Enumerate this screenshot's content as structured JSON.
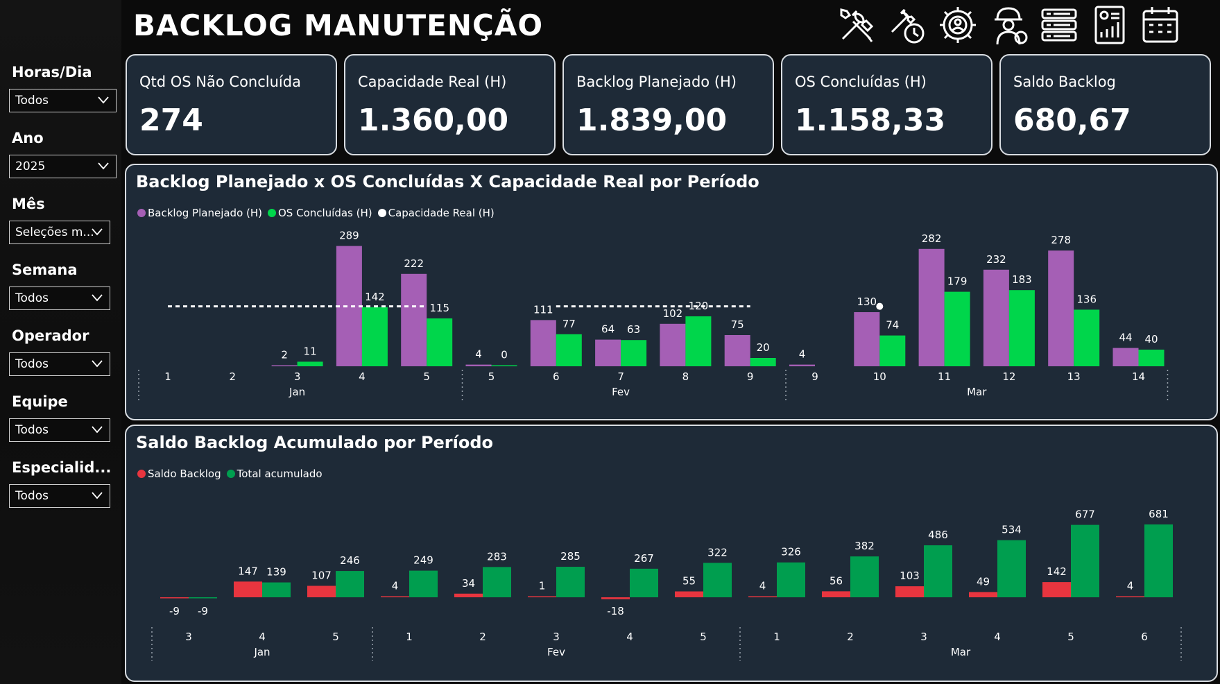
{
  "title": "BACKLOG MANUTENÇÃO",
  "header_icons": [
    "tools-icon",
    "wrench-timer-icon",
    "gear-person-money-icon",
    "engineer-gear-icon",
    "checklist-icon",
    "report-chart-icon",
    "calendar-icon"
  ],
  "filters": [
    {
      "label": "Horas/Dia",
      "value": "Todos"
    },
    {
      "label": "Ano",
      "value": "2025"
    },
    {
      "label": "Mês",
      "value": "Seleções m..."
    },
    {
      "label": "Semana",
      "value": "Todos"
    },
    {
      "label": "Operador",
      "value": "Todos"
    },
    {
      "label": "Equipe",
      "value": "Todos"
    },
    {
      "label": "Especialid...",
      "value": "Todos"
    }
  ],
  "kpis": [
    {
      "label": "Qtd OS Não Concluída",
      "value": "274"
    },
    {
      "label": "Capacidade Real (H)",
      "value": "1.360,00"
    },
    {
      "label": "Backlog Planejado (H)",
      "value": "1.839,00"
    },
    {
      "label": "OS Concluídas (H)",
      "value": "1.158,33"
    },
    {
      "label": "Saldo Backlog",
      "value": "680,67"
    }
  ],
  "colors": {
    "purple": "#a55fb5",
    "green": "#00d64b",
    "red": "#e8353f",
    "darkgreen": "#009e4f",
    "white": "#ffffff",
    "panel": "#1e2a37"
  },
  "chart_data": [
    {
      "type": "bar",
      "title": "Backlog Planejado x OS Concluídas X Capacidade Real por Período",
      "legend": [
        "Backlog Planejado (H)",
        "OS Concluídas (H)",
        "Capacidade Real (H)"
      ],
      "categories": [
        "1",
        "2",
        "3",
        "4",
        "5",
        "5",
        "6",
        "7",
        "8",
        "9",
        "9",
        "10",
        "11",
        "12",
        "13",
        "14"
      ],
      "groups": [
        {
          "label": "Jan",
          "from": 0,
          "to": 4
        },
        {
          "label": "Fev",
          "from": 5,
          "to": 9
        },
        {
          "label": "Mar",
          "from": 10,
          "to": 15
        }
      ],
      "series": [
        {
          "name": "Backlog Planejado (H)",
          "values": [
            null,
            null,
            2,
            289,
            222,
            4,
            111,
            64,
            102,
            75,
            4,
            130,
            282,
            232,
            278,
            44
          ]
        },
        {
          "name": "OS Concluídas (H)",
          "values": [
            null,
            null,
            11,
            142,
            115,
            0,
            77,
            63,
            120,
            20,
            null,
            74,
            179,
            183,
            136,
            40
          ]
        },
        {
          "name": "Capacidade Real (H)",
          "values": [
            144,
            144,
            144,
            144,
            144,
            null,
            144,
            144,
            144,
            144,
            null,
            144,
            null,
            null,
            null,
            null
          ]
        }
      ],
      "ylim": [
        0,
        300
      ]
    },
    {
      "type": "bar",
      "title": "Saldo Backlog Acumulado por Período",
      "legend": [
        "Saldo Backlog",
        "Total acumulado"
      ],
      "categories": [
        "3",
        "4",
        "5",
        "1",
        "2",
        "3",
        "4",
        "5",
        "1",
        "2",
        "3",
        "4",
        "5",
        "6"
      ],
      "groups": [
        {
          "label": "Jan",
          "from": 0,
          "to": 2
        },
        {
          "label": "Fev",
          "from": 3,
          "to": 7
        },
        {
          "label": "Mar",
          "from": 8,
          "to": 13
        }
      ],
      "series": [
        {
          "name": "Saldo Backlog",
          "values": [
            -9,
            147,
            107,
            4,
            34,
            1,
            -18,
            55,
            4,
            56,
            103,
            49,
            142,
            4
          ]
        },
        {
          "name": "Total acumulado",
          "values": [
            -9,
            139,
            246,
            249,
            283,
            285,
            267,
            322,
            326,
            382,
            486,
            534,
            677,
            681
          ]
        }
      ],
      "ylim": [
        -20,
        700
      ]
    }
  ]
}
